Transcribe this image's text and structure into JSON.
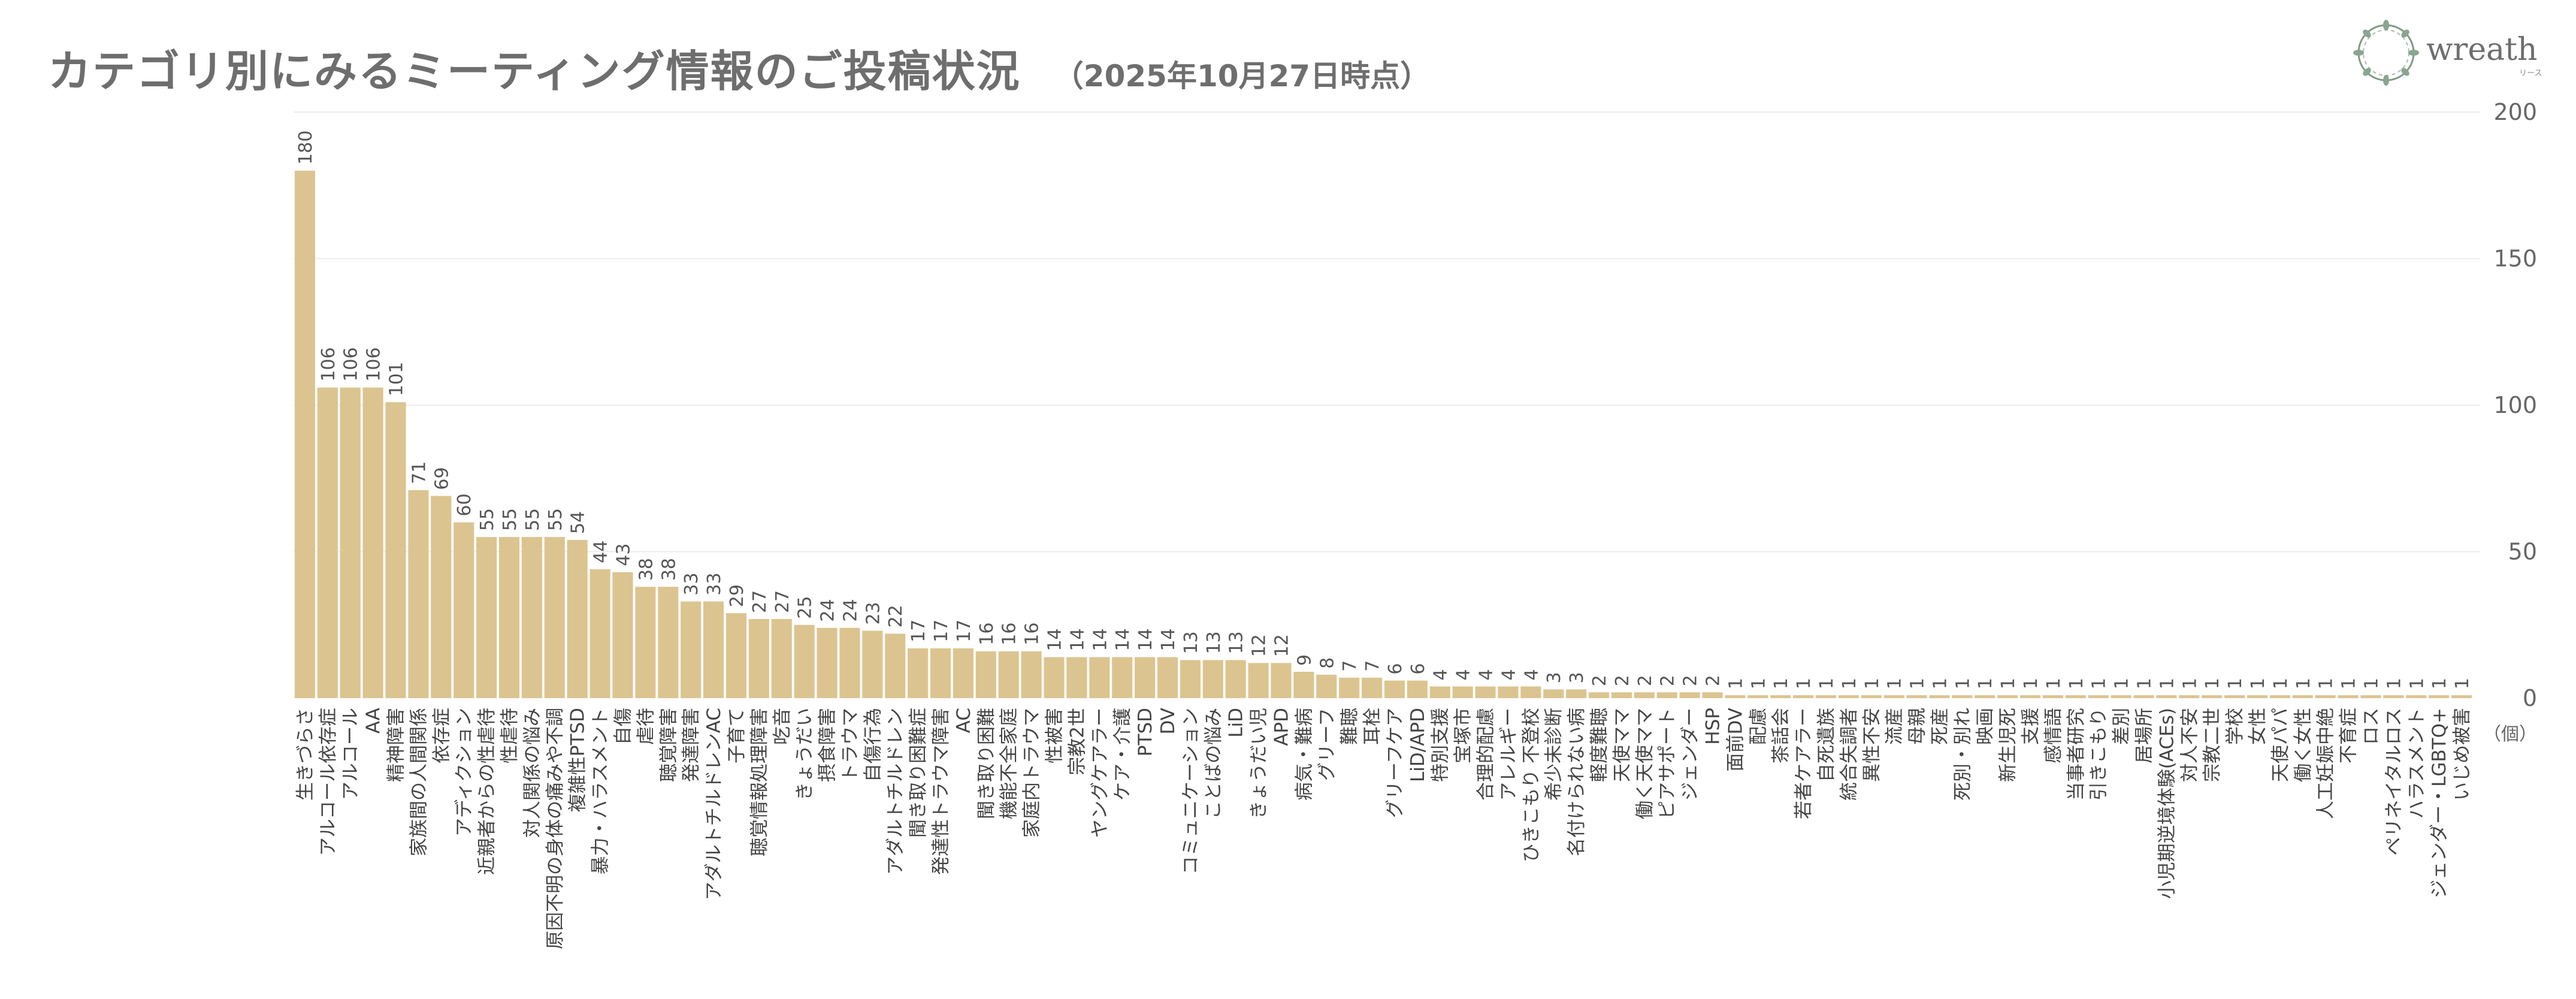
{
  "chart_data": {
    "type": "bar",
    "title": "カテゴリ別にみるミーティング情報のご投稿状況",
    "subtitle": "（2025年10月27日時点）",
    "ylabel": "（個）",
    "ylim": [
      0,
      200
    ],
    "yticks": [
      0,
      50,
      100,
      150,
      200
    ],
    "grid": true,
    "bar_color": "#dcc490",
    "categories": [
      "生きづらさ",
      "アルコール依存症",
      "アルコール",
      "AA",
      "精神障害",
      "家族間の人間関係",
      "依存症",
      "アディクション",
      "近親者からの性虐待",
      "性虐待",
      "対人関係の悩み",
      "原因不明の身体の痛みや不調",
      "複雑性PTSD",
      "暴力・ハラスメント",
      "自傷",
      "虐待",
      "聴覚障害",
      "発達障害",
      "アダルトチルドレンAC",
      "子育て",
      "聴覚情報処理障害",
      "吃音",
      "きょうだい",
      "摂食障害",
      "トラウマ",
      "自傷行為",
      "アダルトチルドレン",
      "聞き取り困難症",
      "発達性トラウマ障害",
      "AC",
      "聞き取り困難",
      "機能不全家庭",
      "家庭内トラウマ",
      "性被害",
      "宗教2世",
      "ヤングケアラー",
      "ケア・介護",
      "PTSD",
      "DV",
      "コミュニケーション",
      "ことばの悩み",
      "LiD",
      "きょうだい児",
      "APD",
      "病気・難病",
      "グリーフ",
      "難聴",
      "耳栓",
      "グリーフケア",
      "LiD/APD",
      "特別支援",
      "宝塚市",
      "合理的配慮",
      "アレルギー",
      "ひきこもり 不登校",
      "希少未診断",
      "名付けられない病",
      "軽度難聴",
      "天使ママ",
      "働く天使ママ",
      "ピアサポート",
      "ジェンダー",
      "HSP",
      "面前DV",
      "配慮",
      "茶話会",
      "若者ケアラー",
      "自死遺族",
      "統合失調者",
      "異性不安",
      "流産",
      "母親",
      "死産",
      "死別・別れ",
      "映画",
      "新生児死",
      "支援",
      "感情語",
      "当事者研究",
      "引きこもり",
      "差別",
      "居場所",
      "小児期逆境体験(ACEs)",
      "対人不安",
      "宗教二世",
      "学校",
      "女性",
      "天使パパ",
      "働く女性",
      "人工妊娠中絶",
      "不育症",
      "ロス",
      "ペリネイタルロス",
      "ハラスメント",
      "ジェンダー・LGBTQ+",
      "いじめ被害"
    ],
    "values": [
      180,
      106,
      106,
      106,
      101,
      71,
      69,
      60,
      55,
      55,
      55,
      55,
      54,
      44,
      43,
      38,
      38,
      33,
      33,
      29,
      27,
      27,
      25,
      24,
      24,
      23,
      22,
      17,
      17,
      17,
      16,
      16,
      16,
      14,
      14,
      14,
      14,
      14,
      14,
      13,
      13,
      13,
      12,
      12,
      9,
      8,
      7,
      7,
      6,
      6,
      4,
      4,
      4,
      4,
      4,
      3,
      3,
      2,
      2,
      2,
      2,
      2,
      2,
      1,
      1,
      1,
      1,
      1,
      1,
      1,
      1,
      1,
      1,
      1,
      1,
      1,
      1,
      1,
      1,
      1,
      1,
      1,
      1,
      1,
      1,
      1,
      1,
      1,
      1,
      1,
      1,
      1,
      1,
      1,
      1,
      1
    ]
  },
  "logo": {
    "text": "wreath",
    "subtext": "リース"
  }
}
